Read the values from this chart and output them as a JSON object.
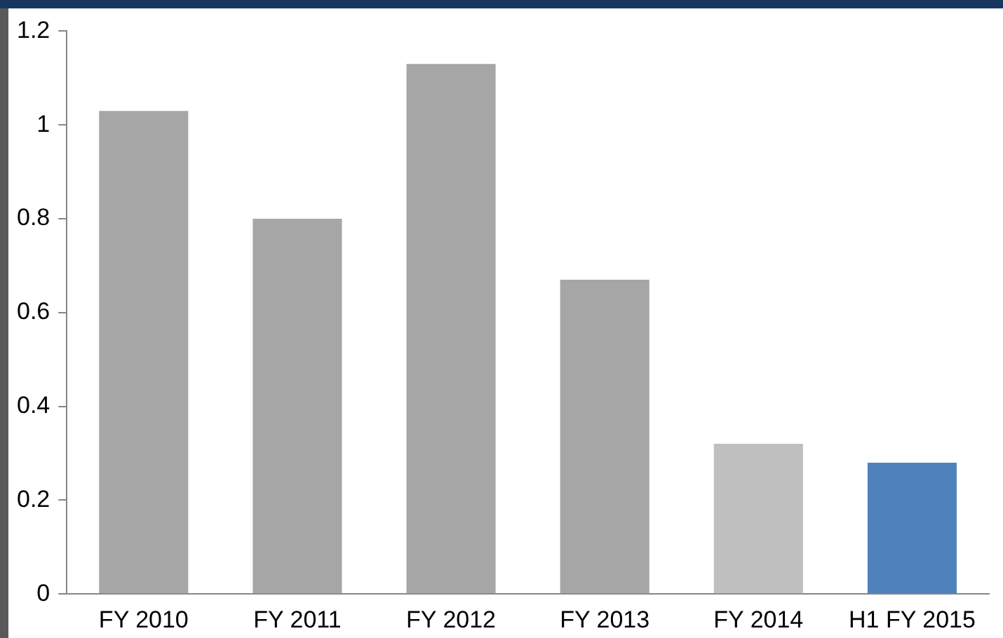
{
  "chart_data": {
    "type": "bar",
    "categories": [
      "FY 2010",
      "FY 2011",
      "FY 2012",
      "FY 2013",
      "FY 2014",
      "H1 FY 2015"
    ],
    "values": [
      1.03,
      0.8,
      1.13,
      0.67,
      0.32,
      0.28
    ],
    "colors": [
      "#a6a6a6",
      "#a6a6a6",
      "#a6a6a6",
      "#a6a6a6",
      "#bfbfbf",
      "#4f81bd"
    ],
    "ylim": [
      0,
      1.2
    ],
    "yticks": [
      0,
      0.2,
      0.4,
      0.6,
      0.8,
      1,
      1.2
    ],
    "grid": false,
    "legend": false
  }
}
